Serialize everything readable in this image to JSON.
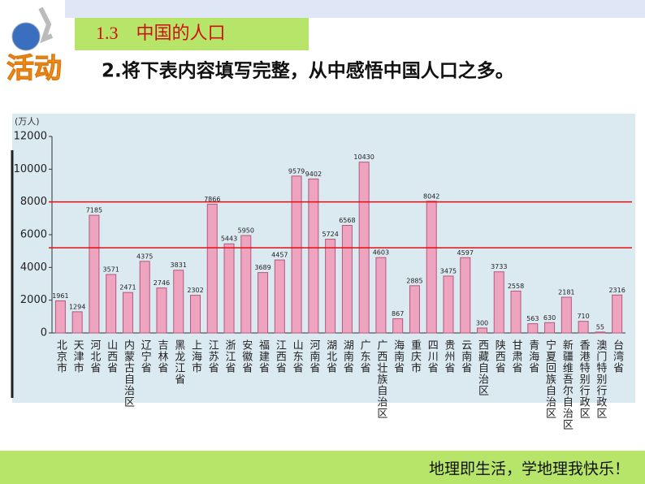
{
  "header": {
    "section": "1.3　中国的人口",
    "activity": "活动",
    "instruction": "2.将下表内容填写完整，从中感悟中国人口之多。"
  },
  "chart_data": {
    "type": "bar",
    "ylabel": "(万人)",
    "categories": [
      "北京市",
      "天津市",
      "河北省",
      "山西省",
      "内蒙古自治区",
      "辽宁省",
      "吉林省",
      "黑龙江省",
      "上海市",
      "江苏省",
      "浙江省",
      "安徽省",
      "福建省",
      "江西省",
      "山东省",
      "河南省",
      "湖北省",
      "湖南省",
      "广东省",
      "广西壮族自治区",
      "海南省",
      "重庆市",
      "四川省",
      "贵州省",
      "云南省",
      "西藏自治区",
      "陕西省",
      "甘肃省",
      "青海省",
      "宁夏回族自治区",
      "新疆维吾尔自治区",
      "香港特别行政区",
      "澳门特别行政区",
      "台湾省"
    ],
    "values": [
      1961,
      1294,
      7185,
      3571,
      2471,
      4375,
      2746,
      3831,
      2302,
      7866,
      5443,
      5950,
      3689,
      4457,
      9579,
      9402,
      5724,
      6568,
      10430,
      4603,
      867,
      2885,
      8042,
      3475,
      4597,
      300,
      3733,
      2558,
      563,
      630,
      2181,
      710,
      55,
      2316
    ],
    "color": "#eea4bf",
    "ylim": [
      0,
      12000
    ],
    "yticks": [
      0,
      2000,
      4000,
      6000,
      8000,
      10000,
      12000
    ],
    "reference_lines": [
      8000,
      5200
    ],
    "reference_color": "#e01010"
  },
  "footer": {
    "text": "地理即生活，学地理我快乐！"
  }
}
